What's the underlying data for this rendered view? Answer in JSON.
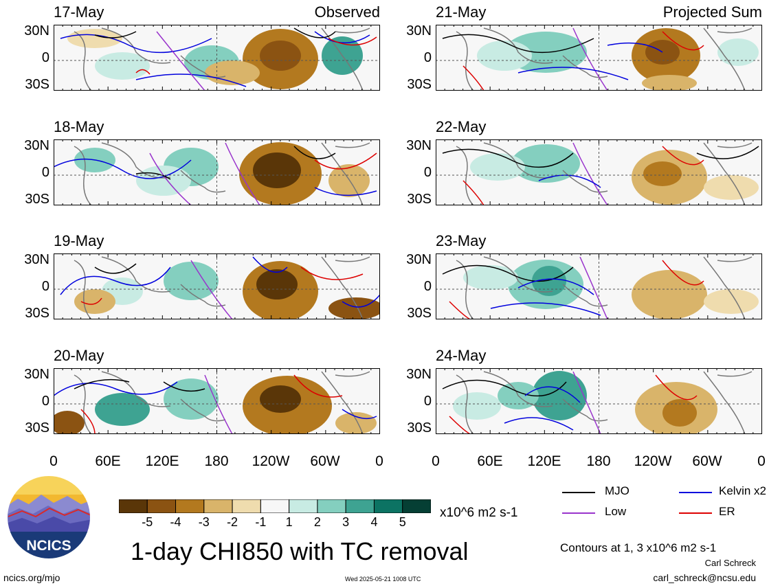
{
  "panels": [
    {
      "date": "17-May",
      "corner": "Observed"
    },
    {
      "date": "18-May",
      "corner": ""
    },
    {
      "date": "19-May",
      "corner": ""
    },
    {
      "date": "20-May",
      "corner": ""
    },
    {
      "date": "21-May",
      "corner": "Projected Sum"
    },
    {
      "date": "22-May",
      "corner": ""
    },
    {
      "date": "23-May",
      "corner": ""
    },
    {
      "date": "24-May",
      "corner": ""
    }
  ],
  "y_ticks": [
    "30N",
    "0",
    "30S"
  ],
  "x_ticks": [
    "0",
    "60E",
    "120E",
    "180",
    "120W",
    "60W",
    "0"
  ],
  "colorbar": {
    "labels": [
      "-5",
      "-4",
      "-3",
      "-2",
      "-1",
      "1",
      "2",
      "3",
      "4",
      "5"
    ],
    "colors": [
      "#5a3608",
      "#8b5312",
      "#b3791f",
      "#d9b46a",
      "#efdcae",
      "#f7f7f7",
      "#c8ebe3",
      "#84cfbf",
      "#3ea392",
      "#0c7363",
      "#053f34"
    ],
    "units": "x10^6 m2 s-1"
  },
  "legend": [
    {
      "label": "MJO",
      "color": "#000000"
    },
    {
      "label": "Kelvin x2",
      "color": "#0000dd"
    },
    {
      "label": "Low",
      "color": "#9933cc"
    },
    {
      "label": "ER",
      "color": "#dd0000"
    }
  ],
  "title": "1-day CHI850 with TC removal",
  "contour_note": "Contours at 1, 3 x10^6 m2 s-1",
  "author": "Carl Schreck",
  "email": "carl_schreck@ncsu.edu",
  "website": "ncics.org/mjo",
  "timestamp": "Wed 2025-05-21 1008 UTC",
  "logo_text": "NCICS"
}
